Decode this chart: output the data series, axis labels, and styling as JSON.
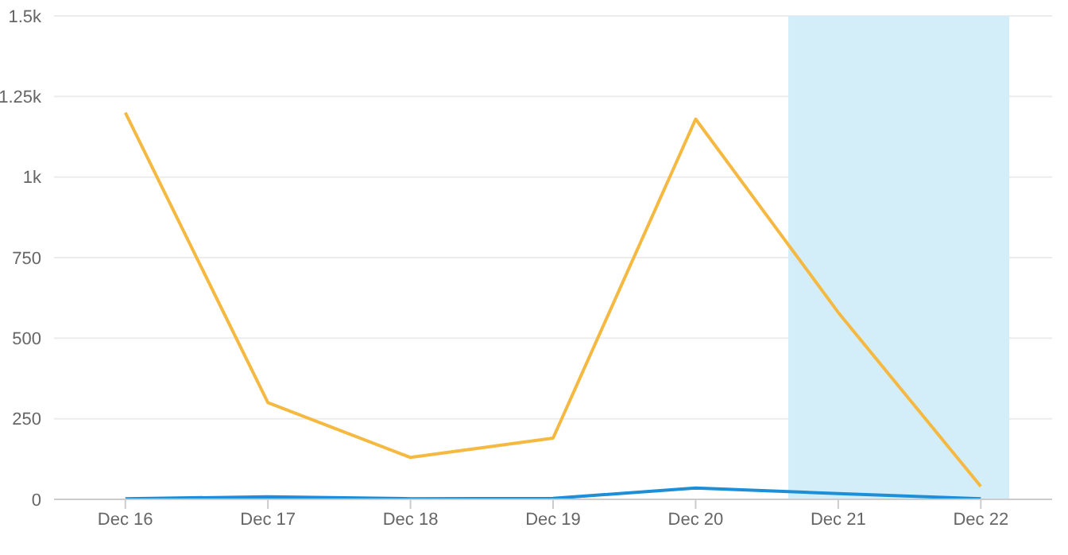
{
  "chart_data": {
    "type": "line",
    "categories": [
      "Dec 16",
      "Dec 17",
      "Dec 18",
      "Dec 19",
      "Dec 20",
      "Dec 21",
      "Dec 22"
    ],
    "series": [
      {
        "color": "#f5b942",
        "values": [
          1200,
          300,
          130,
          190,
          1180,
          580,
          40
        ]
      },
      {
        "color": "#1e8fd6",
        "values": [
          2,
          8,
          2,
          3,
          35,
          18,
          2
        ]
      }
    ],
    "ylim": [
      0,
      1500
    ],
    "yticks": [
      0,
      250,
      500,
      750,
      {
        "value": 1000,
        "label": "1k"
      },
      {
        "value": 1250,
        "label": "1.25k"
      },
      {
        "value": 1500,
        "label": "1.5k"
      }
    ],
    "grid": "y",
    "legend": false,
    "marker": "none",
    "line_style": "solid",
    "bands": [
      {
        "axis": "x",
        "from": "Dec 21",
        "to": "Dec 22",
        "color": "#d4eef9"
      }
    ]
  }
}
